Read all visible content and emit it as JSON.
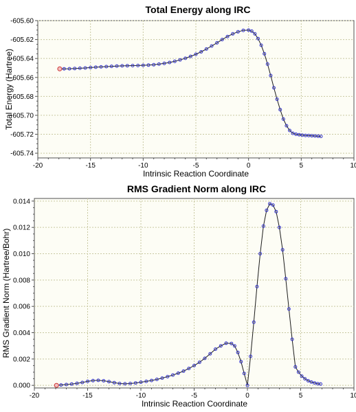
{
  "chart_data": [
    {
      "type": "line",
      "title": "Total Energy along IRC",
      "xlabel": "Intrinsic Reaction Coordinate",
      "ylabel": "Total Energy (Hartree)",
      "xlim": [
        -20,
        10
      ],
      "ylim": [
        -605.745,
        -605.6
      ],
      "xticks": [
        "-20",
        "-15",
        "-10",
        "-5",
        "0",
        "5",
        "10"
      ],
      "yticks": [
        "-605.60",
        "-605.62",
        "-605.64",
        "-605.66",
        "-605.68",
        "-605.70",
        "-605.72",
        "-605.74"
      ],
      "grid": true,
      "colors": {
        "line": "#1a1a1a",
        "marker": "#3333cc",
        "highlight": "#cc3333",
        "plot_bg": "#fdfdf5",
        "grid": "#c8c8a0"
      },
      "series": [
        {
          "x": [
            -17.92,
            -17.5,
            -17.0,
            -16.5,
            -16.0,
            -15.5,
            -15.0,
            -14.5,
            -14.0,
            -13.5,
            -13.0,
            -12.5,
            -12.0,
            -11.5,
            -11.0,
            -10.5,
            -10.0,
            -9.5,
            -9.0,
            -8.5,
            -8.0,
            -7.5,
            -7.0,
            -6.5,
            -6.0,
            -5.5,
            -5.0,
            -4.5,
            -4.0,
            -3.5,
            -3.0,
            -2.5,
            -2.0,
            -1.5,
            -1.0,
            -0.5,
            0.0,
            0.3,
            0.6,
            0.9,
            1.2,
            1.5,
            1.8,
            2.1,
            2.4,
            2.7,
            3.0,
            3.3,
            3.6,
            3.9,
            4.2,
            4.5,
            4.8,
            5.1,
            5.4,
            5.7,
            6.0,
            6.3,
            6.6,
            6.87
          ],
          "y": [
            -605.651,
            -605.6509,
            -605.6508,
            -605.6506,
            -605.6503,
            -605.65,
            -605.6496,
            -605.6492,
            -605.6489,
            -605.6486,
            -605.6483,
            -605.648,
            -605.6478,
            -605.6476,
            -605.6475,
            -605.6474,
            -605.6472,
            -605.647,
            -605.6466,
            -605.646,
            -605.6452,
            -605.6442,
            -605.643,
            -605.6415,
            -605.6398,
            -605.6378,
            -605.6355,
            -605.633,
            -605.63,
            -605.6268,
            -605.6235,
            -605.62,
            -605.6168,
            -605.614,
            -605.6118,
            -605.6103,
            -605.6101,
            -605.6112,
            -605.614,
            -605.619,
            -605.626,
            -605.635,
            -605.646,
            -605.658,
            -605.671,
            -605.683,
            -605.694,
            -605.704,
            -605.711,
            -605.716,
            -605.719,
            -605.72,
            -605.7205,
            -605.721,
            -605.7212,
            -605.7214,
            -605.7216,
            -605.7218,
            -605.722,
            -605.7222
          ],
          "highlight_index": 0
        }
      ]
    },
    {
      "type": "line",
      "title": "RMS Gradient Norm along IRC",
      "xlabel": "Intrinsic Reaction Coordinate",
      "ylabel": "RMS Gradient Norm (Hartree/Bohr)",
      "xlim": [
        -20,
        10
      ],
      "ylim": [
        -0.0002,
        0.0142
      ],
      "xticks": [
        "-20",
        "-15",
        "-10",
        "-5",
        "0",
        "5",
        "10"
      ],
      "yticks": [
        "0.000",
        "0.002",
        "0.004",
        "0.006",
        "0.008",
        "0.010",
        "0.012",
        "0.014"
      ],
      "grid": true,
      "colors": {
        "line": "#1a1a1a",
        "marker": "#3333cc",
        "highlight": "#cc3333",
        "plot_bg": "#fdfdf5",
        "grid": "#c8c8a0"
      },
      "series": [
        {
          "x": [
            -17.92,
            -17.5,
            -17.0,
            -16.5,
            -16.0,
            -15.5,
            -15.0,
            -14.5,
            -14.0,
            -13.5,
            -13.0,
            -12.5,
            -12.0,
            -11.5,
            -11.0,
            -10.5,
            -10.0,
            -9.5,
            -9.0,
            -8.5,
            -8.0,
            -7.5,
            -7.0,
            -6.5,
            -6.0,
            -5.5,
            -5.0,
            -4.5,
            -4.0,
            -3.5,
            -3.0,
            -2.5,
            -2.0,
            -1.5,
            -1.2,
            -0.9,
            -0.6,
            -0.3,
            0.0,
            0.3,
            0.6,
            0.9,
            1.2,
            1.5,
            1.8,
            2.1,
            2.4,
            2.7,
            3.0,
            3.3,
            3.6,
            3.9,
            4.2,
            4.5,
            4.8,
            5.1,
            5.4,
            5.7,
            6.0,
            6.3,
            6.6,
            6.87
          ],
          "y": [
            0.0,
            3e-05,
            6e-05,
            0.0001,
            0.00015,
            0.00022,
            0.0003,
            0.00036,
            0.00038,
            0.00035,
            0.00028,
            0.0002,
            0.00014,
            0.00012,
            0.00014,
            0.00018,
            0.00024,
            0.0003,
            0.00037,
            0.00045,
            0.00055,
            0.00066,
            0.00078,
            0.00092,
            0.00108,
            0.00128,
            0.0015,
            0.00175,
            0.00205,
            0.0024,
            0.00275,
            0.003,
            0.0032,
            0.00318,
            0.003,
            0.0025,
            0.0018,
            0.0009,
            0.0,
            0.0022,
            0.0048,
            0.0075,
            0.01,
            0.0121,
            0.0133,
            0.0138,
            0.0137,
            0.0132,
            0.012,
            0.0103,
            0.0081,
            0.0058,
            0.0035,
            0.0014,
            0.001,
            0.0007,
            0.0005,
            0.00035,
            0.00025,
            0.00018,
            0.00012,
            0.0001
          ],
          "highlight_index": 0
        }
      ]
    }
  ]
}
